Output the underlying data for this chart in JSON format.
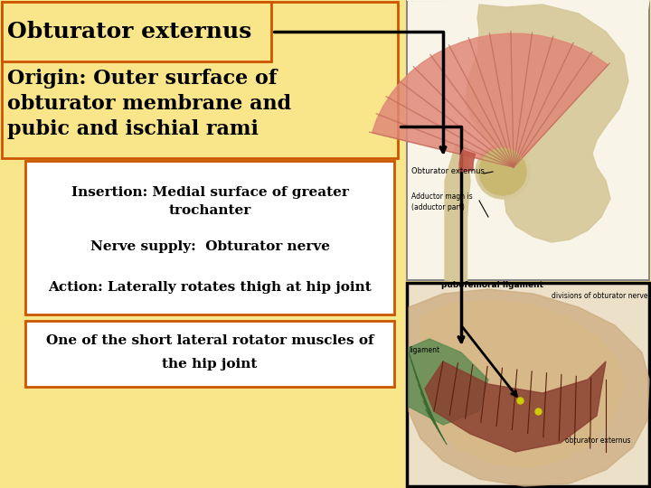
{
  "bg_color": "#FAE68A",
  "title_text": "Obturator externus",
  "title_border_color": "#CC5500",
  "origin_text": "Origin: Outer surface of\nobturator membrane and\npubic and ischial rami",
  "origin_border_color": "#CC5500",
  "info_line1": "Insertion: Medial surface of greater",
  "info_line2": "trochanter",
  "info_line3": "Nerve supply:  Obturator nerve",
  "info_line4": "Action: Laterally rotates thigh at hip joint",
  "info_box_border_color": "#CC5500",
  "bottom_line1": "One of the short lateral rotator muscles of",
  "bottom_line2": "the hip joint",
  "bottom_box_border_color": "#CC5500",
  "arrow_color": "#000000",
  "figsize": [
    7.2,
    5.4
  ],
  "dpi": 100
}
